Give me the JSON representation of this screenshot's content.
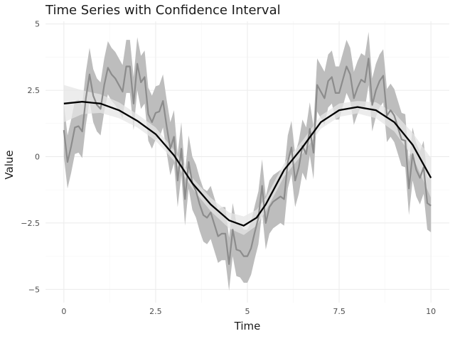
{
  "chart_data": {
    "type": "line",
    "title": "Time Series with Confidence Interval",
    "xlabel": "Time",
    "ylabel": "Value",
    "xlim": [
      -0.5,
      10.5
    ],
    "ylim": [
      -5.5,
      5.1
    ],
    "x_ticks": [
      0,
      2.5,
      5,
      7.5,
      10
    ],
    "x_tick_labels": [
      "0",
      "2.5",
      "5",
      "7.5",
      "10"
    ],
    "y_ticks": [
      -5,
      -2.5,
      0,
      2.5,
      5
    ],
    "y_tick_labels": [
      "−5",
      "−2.5",
      "0",
      "2.5",
      "5"
    ],
    "grid": true,
    "legend": "none",
    "colors": {
      "observed_line": "#8c8c8c",
      "observed_band": "#bdbdbd",
      "smooth_line": "#000000",
      "smooth_band": "#e6e6e6",
      "grid_major": "#ebebeb",
      "grid_minor": "#f5f5f5"
    },
    "series": [
      {
        "role": "observed",
        "x": [
          0,
          0.1,
          0.2,
          0.3,
          0.4,
          0.5,
          0.6,
          0.7,
          0.8,
          0.9,
          1.0,
          1.1,
          1.2,
          1.3,
          1.4,
          1.5,
          1.6,
          1.7,
          1.8,
          1.9,
          2.0,
          2.1,
          2.2,
          2.3,
          2.4,
          2.5,
          2.6,
          2.7,
          2.8,
          2.9,
          3.0,
          3.1,
          3.2,
          3.3,
          3.4,
          3.5,
          3.6,
          3.7,
          3.8,
          3.9,
          4.0,
          4.1,
          4.2,
          4.3,
          4.4,
          4.5,
          4.6,
          4.7,
          4.8,
          4.9,
          5.0,
          5.1,
          5.2,
          5.3,
          5.4,
          5.5,
          5.6,
          5.7,
          5.8,
          5.9,
          6.0,
          6.1,
          6.2,
          6.3,
          6.4,
          6.5,
          6.6,
          6.7,
          6.8,
          6.9,
          7.0,
          7.1,
          7.2,
          7.3,
          7.4,
          7.5,
          7.6,
          7.7,
          7.8,
          7.9,
          8.0,
          8.1,
          8.2,
          8.3,
          8.4,
          8.5,
          8.6,
          8.7,
          8.8,
          8.9,
          9.0,
          9.1,
          9.2,
          9.3,
          9.4,
          9.5,
          9.6,
          9.7,
          9.8,
          9.9,
          10.0
        ],
        "values": [
          1.0,
          -0.2,
          0.4,
          1.1,
          1.15,
          0.95,
          2.2,
          3.1,
          2.3,
          1.95,
          1.8,
          2.7,
          3.35,
          3.1,
          2.95,
          2.7,
          2.45,
          3.4,
          3.4,
          2.0,
          3.5,
          2.8,
          3.0,
          1.6,
          1.3,
          1.65,
          1.7,
          2.1,
          1.15,
          0.3,
          0.75,
          -0.9,
          0.3,
          -1.6,
          -0.2,
          -1.0,
          -1.3,
          -1.8,
          -2.2,
          -2.3,
          -2.1,
          -2.55,
          -3.0,
          -2.9,
          -2.9,
          -4.05,
          -2.75,
          -3.5,
          -3.55,
          -3.75,
          -3.75,
          -3.45,
          -2.85,
          -2.3,
          -1.1,
          -2.5,
          -1.9,
          -1.7,
          -1.6,
          -1.5,
          -1.6,
          -0.2,
          0.35,
          -0.9,
          -0.4,
          0.4,
          0.1,
          1.05,
          0.15,
          2.7,
          2.45,
          2.2,
          2.85,
          3.0,
          2.4,
          2.4,
          2.9,
          3.4,
          3.1,
          2.2,
          2.6,
          2.9,
          2.8,
          3.7,
          1.95,
          2.5,
          2.85,
          3.05,
          1.55,
          1.75,
          1.55,
          1.1,
          0.65,
          0.6,
          -1.2,
          0.1,
          -0.5,
          -0.8,
          -0.4,
          -1.75,
          -1.85
        ],
        "lower": [
          0.0,
          -1.2,
          -0.6,
          0.1,
          0.15,
          -0.05,
          1.2,
          2.1,
          1.3,
          0.95,
          0.8,
          1.7,
          2.35,
          2.1,
          1.95,
          1.7,
          1.45,
          2.4,
          2.4,
          1.0,
          2.5,
          1.8,
          2.0,
          0.6,
          0.3,
          0.65,
          0.7,
          1.1,
          0.15,
          -0.7,
          -0.25,
          -1.9,
          -0.7,
          -2.6,
          -1.2,
          -2.0,
          -2.3,
          -2.8,
          -3.2,
          -3.3,
          -3.1,
          -3.55,
          -4.0,
          -3.9,
          -3.9,
          -5.05,
          -3.75,
          -4.5,
          -4.55,
          -4.75,
          -4.75,
          -4.45,
          -3.85,
          -3.3,
          -2.1,
          -3.5,
          -2.9,
          -2.7,
          -2.6,
          -2.5,
          -2.6,
          -1.2,
          -0.65,
          -1.9,
          -1.4,
          -0.6,
          -0.9,
          0.05,
          -0.85,
          1.7,
          1.45,
          1.2,
          1.85,
          2.0,
          1.4,
          1.4,
          1.9,
          2.4,
          2.1,
          1.2,
          1.6,
          1.9,
          1.8,
          2.7,
          0.95,
          1.5,
          1.85,
          2.05,
          0.55,
          0.75,
          0.55,
          0.1,
          -0.35,
          -0.4,
          -2.2,
          -0.9,
          -1.5,
          -1.8,
          -1.4,
          -2.75,
          -2.85
        ],
        "upper": [
          2.0,
          0.8,
          1.4,
          2.1,
          2.15,
          1.95,
          3.2,
          4.1,
          3.3,
          2.95,
          2.8,
          3.7,
          4.35,
          4.1,
          3.95,
          3.7,
          3.45,
          4.4,
          4.4,
          3.0,
          4.5,
          3.8,
          4.0,
          2.6,
          2.3,
          2.65,
          2.7,
          3.1,
          2.15,
          1.3,
          1.75,
          0.1,
          1.3,
          -0.6,
          0.8,
          0.0,
          -0.3,
          -0.8,
          -1.2,
          -1.3,
          -1.1,
          -1.55,
          -2.0,
          -1.9,
          -1.9,
          -3.05,
          -1.75,
          -2.5,
          -2.55,
          -2.75,
          -2.75,
          -2.45,
          -1.85,
          -1.3,
          -0.1,
          -1.5,
          -0.9,
          -0.7,
          -0.6,
          -0.5,
          -0.6,
          0.8,
          1.35,
          0.1,
          0.6,
          1.4,
          1.1,
          2.05,
          1.15,
          3.7,
          3.45,
          3.2,
          3.85,
          4.0,
          3.4,
          3.4,
          3.9,
          4.4,
          4.1,
          3.2,
          3.6,
          3.9,
          3.8,
          4.7,
          2.95,
          3.5,
          3.85,
          4.05,
          2.55,
          2.75,
          2.55,
          2.1,
          1.65,
          1.6,
          -0.2,
          1.1,
          0.5,
          0.2,
          0.6,
          -0.75,
          -0.85
        ]
      },
      {
        "role": "smoothed",
        "x": [
          0,
          0.5,
          1.0,
          1.5,
          2.0,
          2.5,
          3.0,
          3.5,
          4.0,
          4.5,
          4.9,
          5.25,
          5.5,
          6.0,
          6.5,
          7.0,
          7.5,
          8.0,
          8.5,
          9.0,
          9.5,
          10.0
        ],
        "values": [
          2.0,
          2.07,
          2.0,
          1.75,
          1.35,
          0.85,
          0.05,
          -1.0,
          -1.8,
          -2.4,
          -2.6,
          -2.3,
          -1.8,
          -0.5,
          0.35,
          1.3,
          1.75,
          1.87,
          1.75,
          1.3,
          0.45,
          -0.8
        ],
        "lower": [
          1.3,
          1.6,
          1.65,
          1.45,
          1.1,
          0.6,
          -0.15,
          -1.2,
          -2.05,
          -2.7,
          -2.95,
          -2.6,
          -2.05,
          -0.75,
          0.1,
          1.05,
          1.5,
          1.63,
          1.45,
          0.95,
          0.0,
          -1.55
        ],
        "upper": [
          2.7,
          2.5,
          2.35,
          2.05,
          1.6,
          1.1,
          0.25,
          -0.8,
          -1.55,
          -2.1,
          -2.25,
          -2.0,
          -1.55,
          -0.25,
          0.6,
          1.55,
          2.0,
          2.1,
          2.05,
          1.65,
          0.9,
          -0.05
        ]
      }
    ]
  }
}
